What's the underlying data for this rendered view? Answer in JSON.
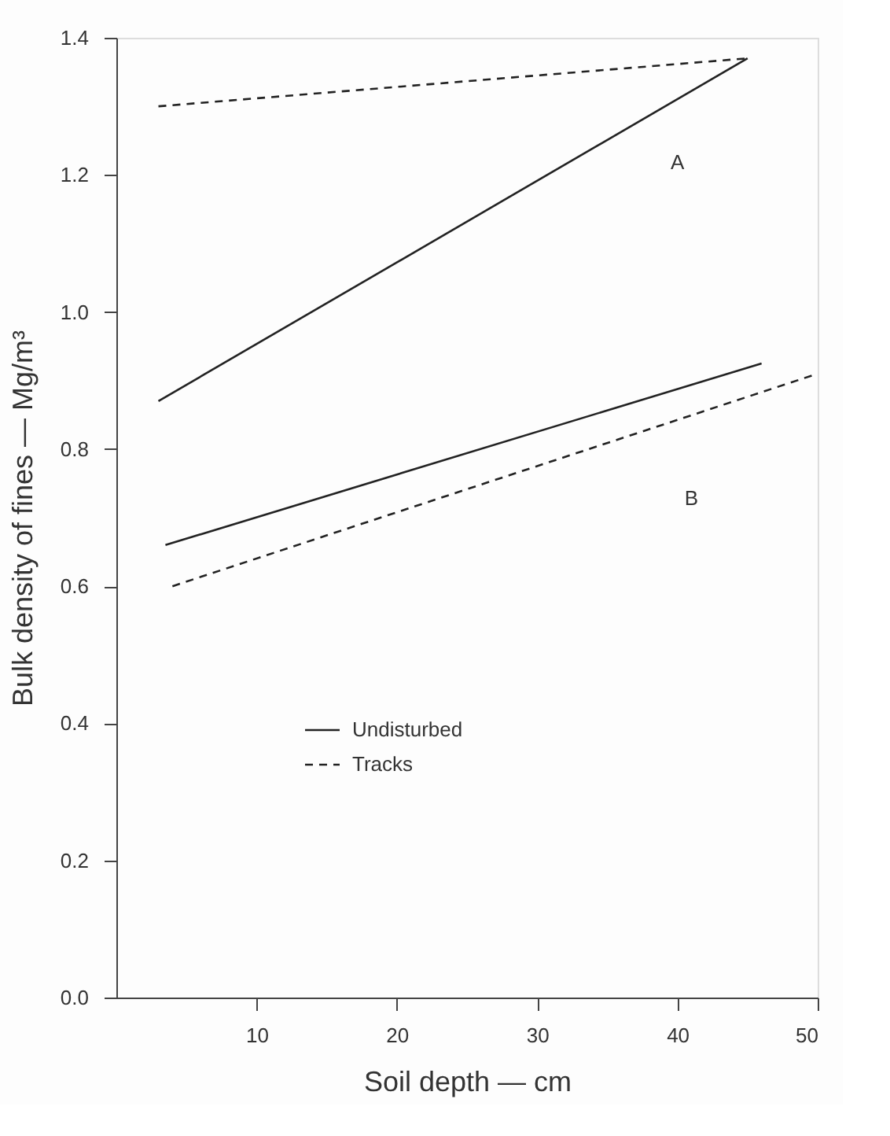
{
  "chart_data": {
    "type": "line",
    "xlabel": "Soil depth — cm",
    "ylabel": "Bulk density of fines — Mg/m³",
    "xlim": [
      0,
      50
    ],
    "xticks": [
      10,
      20,
      30,
      40,
      50
    ],
    "ylim": [
      0,
      1.4
    ],
    "yticks": [
      {
        "value": 0,
        "label": "0.0"
      },
      0.2,
      0.4,
      0.6,
      0.8,
      {
        "value": 1,
        "label": "1.0"
      },
      1.2,
      1.4
    ],
    "grid": false,
    "legend": "bottom",
    "marker": "none",
    "series": [
      {
        "name": "Undisturbed",
        "color": "#222222",
        "line_style": "solid",
        "x": [
          3,
          45
        ],
        "values": [
          0.87,
          1.37
        ]
      },
      {
        "name": "Tracks",
        "color": "#222222",
        "line_style": "dashed",
        "x": [
          3,
          45
        ],
        "values": [
          1.3,
          1.37
        ]
      },
      {
        "color": "#222222",
        "line_style": "solid",
        "x": [
          3.5,
          46
        ],
        "values": [
          0.66,
          0.925
        ]
      },
      {
        "color": "#222222",
        "line_style": "dashed",
        "x": [
          4,
          50
        ],
        "values": [
          0.6,
          0.91
        ]
      }
    ],
    "annotations": [
      "A",
      "B"
    ]
  }
}
